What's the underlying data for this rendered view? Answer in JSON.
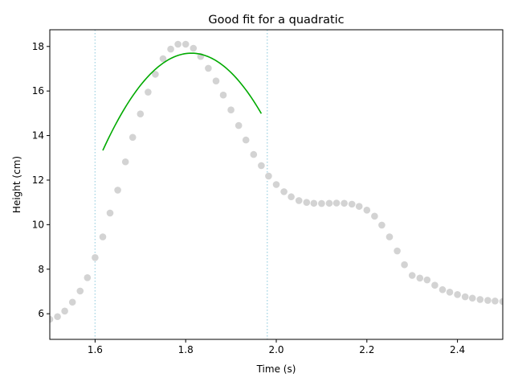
{
  "chart_data": {
    "type": "scatter",
    "title": "Good fit for a quadratic",
    "xlabel": "Time (s)",
    "ylabel": "Height (cm)",
    "xlim": [
      1.5,
      2.5
    ],
    "ylim": [
      4.85,
      18.75
    ],
    "grid": false,
    "x_ticks": [
      1.6,
      1.8,
      2.0,
      2.2,
      2.4
    ],
    "x_tick_labels": [
      "1.6",
      "1.8",
      "2.0",
      "2.2",
      "2.4"
    ],
    "y_ticks": [
      6,
      8,
      10,
      12,
      14,
      16,
      18
    ],
    "y_tick_labels": [
      "6",
      "8",
      "10",
      "12",
      "14",
      "16",
      "18"
    ],
    "vertical_lines": [
      1.6,
      1.98
    ],
    "colors": {
      "points": "#d3d3d3",
      "fit": "#00aa00",
      "vlines": "#add8e6"
    },
    "points": [
      [
        1.5,
        5.75
      ],
      [
        1.517,
        5.87
      ],
      [
        1.533,
        6.12
      ],
      [
        1.55,
        6.52
      ],
      [
        1.567,
        7.02
      ],
      [
        1.583,
        7.62
      ],
      [
        1.6,
        8.52
      ],
      [
        1.617,
        9.45
      ],
      [
        1.633,
        10.52
      ],
      [
        1.65,
        11.55
      ],
      [
        1.667,
        12.82
      ],
      [
        1.683,
        13.92
      ],
      [
        1.7,
        14.97
      ],
      [
        1.717,
        15.95
      ],
      [
        1.733,
        16.75
      ],
      [
        1.75,
        17.45
      ],
      [
        1.767,
        17.88
      ],
      [
        1.783,
        18.1
      ],
      [
        1.8,
        18.1
      ],
      [
        1.817,
        17.92
      ],
      [
        1.833,
        17.55
      ],
      [
        1.85,
        17.02
      ],
      [
        1.867,
        16.45
      ],
      [
        1.883,
        15.82
      ],
      [
        1.9,
        15.15
      ],
      [
        1.917,
        14.45
      ],
      [
        1.933,
        13.8
      ],
      [
        1.95,
        13.15
      ],
      [
        1.967,
        12.65
      ],
      [
        1.983,
        12.18
      ],
      [
        2.0,
        11.8
      ],
      [
        2.017,
        11.48
      ],
      [
        2.033,
        11.25
      ],
      [
        2.05,
        11.08
      ],
      [
        2.067,
        11.0
      ],
      [
        2.083,
        10.96
      ],
      [
        2.1,
        10.95
      ],
      [
        2.117,
        10.96
      ],
      [
        2.133,
        10.97
      ],
      [
        2.15,
        10.96
      ],
      [
        2.167,
        10.92
      ],
      [
        2.183,
        10.82
      ],
      [
        2.2,
        10.65
      ],
      [
        2.217,
        10.38
      ],
      [
        2.233,
        9.98
      ],
      [
        2.25,
        9.45
      ],
      [
        2.267,
        8.82
      ],
      [
        2.283,
        8.2
      ],
      [
        2.3,
        7.72
      ],
      [
        2.317,
        7.6
      ],
      [
        2.333,
        7.52
      ],
      [
        2.35,
        7.28
      ],
      [
        2.367,
        7.08
      ],
      [
        2.383,
        6.97
      ],
      [
        2.4,
        6.86
      ],
      [
        2.417,
        6.76
      ],
      [
        2.433,
        6.7
      ],
      [
        2.45,
        6.64
      ],
      [
        2.467,
        6.6
      ],
      [
        2.483,
        6.57
      ],
      [
        2.5,
        6.55
      ]
    ],
    "fit": {
      "x_range": [
        1.617,
        1.967
      ],
      "coefficients": [
        -114.0,
        413.3,
        -356.9
      ]
    }
  }
}
